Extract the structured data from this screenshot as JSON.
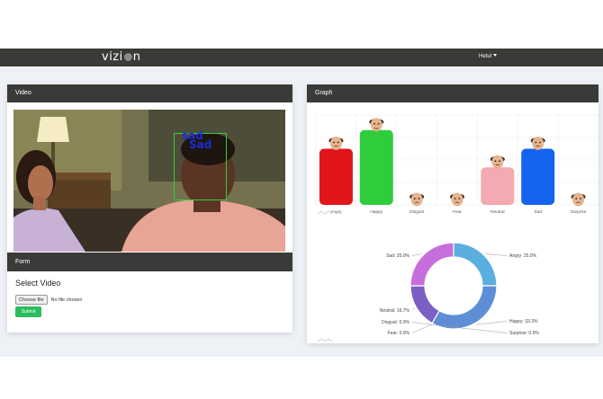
{
  "app": {
    "brand": "vizion",
    "user_label": "Hetul"
  },
  "video_card": {
    "title": "Video",
    "detected_emotion": "sad",
    "detected_emotion_label": "Sad"
  },
  "form_card": {
    "title": "Form",
    "select_title": "Select Video",
    "choose_file_label": "Choose file",
    "no_file_text": "No file chosen",
    "submit_label": "Submit"
  },
  "graph_card": {
    "title": "Graph"
  },
  "colors": {
    "navbar": "#3a3a38",
    "submit": "#2bbd5b",
    "face_box": "#2fd13a",
    "emotion_text": "#1a2fd6"
  },
  "chart_data": [
    {
      "type": "bar",
      "categories": [
        "Angry",
        "Happy",
        "Disgust",
        "Fear",
        "Neutral",
        "Sad",
        "Surprise"
      ],
      "values": [
        25,
        33.3,
        0,
        0,
        16.7,
        25,
        0
      ],
      "colors": [
        "#e0161b",
        "#2fcc3c",
        "#ffffff",
        "#ffffff",
        "#f5a9b1",
        "#1663f0",
        "#ffffff"
      ],
      "icons": [
        "angry-face-icon",
        "happy-face-icon",
        "disgust-face-icon",
        "fear-face-icon",
        "neutral-face-icon",
        "sad-face-icon",
        "surprise-face-icon"
      ],
      "ylim": [
        0,
        40
      ],
      "grid": true
    },
    {
      "type": "pie",
      "donut": true,
      "slices": [
        {
          "label": "Angry",
          "value": 25.0,
          "text": "Angry: 25.0%",
          "color": "#5aaee0"
        },
        {
          "label": "Happy",
          "value": 33.3,
          "text": "Happy: 33.3%",
          "color": "#5e8ed6"
        },
        {
          "label": "Surprise",
          "value": 0.0,
          "text": "Surprise: 0.0%",
          "color": "#e07070"
        },
        {
          "label": "Fear",
          "value": 0.0,
          "text": "Fear: 0.0%",
          "color": "#f0c070"
        },
        {
          "label": "Disgust",
          "value": 0.0,
          "text": "Disgust: 0.0%",
          "color": "#70c070"
        },
        {
          "label": "Neutral",
          "value": 16.7,
          "text": "Neutral: 16.7%",
          "color": "#7b5fc4"
        },
        {
          "label": "Sad",
          "value": 25.0,
          "text": "Sad: 25.0%",
          "color": "#c66fdc"
        }
      ]
    }
  ]
}
